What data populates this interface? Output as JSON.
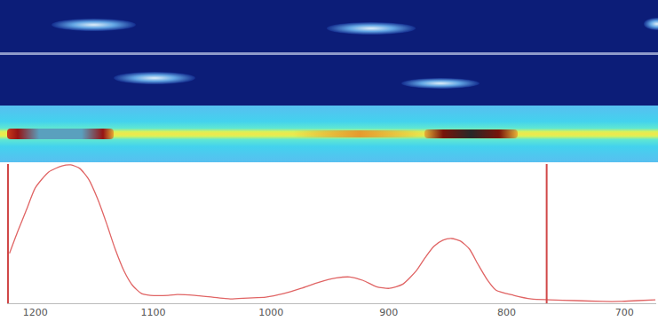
{
  "chart_data": {
    "type": "line",
    "x": [
      1222,
      1215,
      1207.5,
      1200,
      1188.7,
      1177.4,
      1169.9,
      1162.4,
      1154.9,
      1147.4,
      1139.8,
      1132.3,
      1124.8,
      1117.3,
      1109.8,
      1102.3,
      1087.2,
      1079.7,
      1064.7,
      1049.6,
      1034.6,
      1019.5,
      1004.5,
      989.5,
      974.4,
      959.4,
      944.4,
      933.1,
      921.8,
      910.5,
      899.5,
      888.0,
      876.7,
      869.2,
      861.7,
      854.1,
      846.6,
      839.1,
      831.6,
      824.1,
      816.5,
      809,
      794,
      779,
      763.9,
      741.4,
      718.8,
      703.8,
      688.7,
      673.7
    ],
    "values": [
      35.8,
      51.6,
      67.3,
      83,
      94.3,
      98.7,
      99.4,
      96.9,
      89.3,
      75.5,
      57.9,
      39,
      23.3,
      12.6,
      6.9,
      5.7,
      5.7,
      6.3,
      5.7,
      4.4,
      3.1,
      3.8,
      4.4,
      6.9,
      10.7,
      15.1,
      18.2,
      18.9,
      16.4,
      11.9,
      10.7,
      13.8,
      23.3,
      32.7,
      40.9,
      45.3,
      46.5,
      44.7,
      39,
      27.7,
      17,
      9.4,
      5.7,
      3.1,
      2.5,
      1.9,
      1.3,
      1.3,
      1.9,
      2.5
    ],
    "color": "#e06464",
    "xlim": [
      1222.5,
      673
    ],
    "xticks": [
      1200,
      1100,
      1000,
      900,
      800,
      700
    ],
    "ylim": [
      0,
      100
    ],
    "tick_labels": "x",
    "grid": false,
    "reference_line": {
      "x": 766,
      "color": "#d04848"
    }
  }
}
